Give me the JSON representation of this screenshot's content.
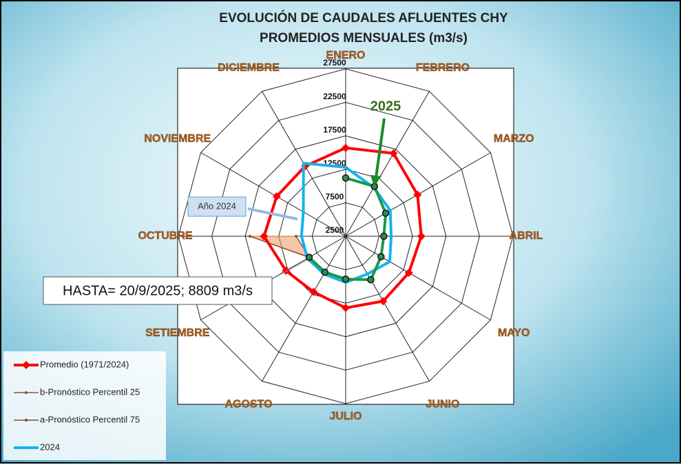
{
  "chart_data": {
    "type": "radar",
    "title": "EVOLUCIÓN DE CAUDALES AFLUENTES CHY",
    "subtitle": "PROMEDIOS MENSUALES (m3/s)",
    "categories": [
      "ENERO",
      "FEBRERO",
      "MARZO",
      "ABRIL",
      "MAYO",
      "JUNIO",
      "JULIO",
      "AGOSTO",
      "SETIEMBRE",
      "OCTUBRE",
      "NOVIEMBRE",
      "DICIEMBRE"
    ],
    "rlim": [
      2500,
      27500
    ],
    "rticks": [
      2500,
      7500,
      12500,
      17500,
      22500,
      27500
    ],
    "series": [
      {
        "name": "Promedio (1971/2024)",
        "color": "#ff0000",
        "marker": "diamond",
        "values": [
          15700,
          16800,
          14900,
          13800,
          13400,
          13700,
          13200,
          12100,
          12800,
          14700,
          14400,
          14600
        ]
      },
      {
        "name": "b-Pronóstico Percentil 25",
        "color": "#9c4a3a",
        "marker": "dot",
        "values": [
          null,
          null,
          null,
          null,
          null,
          null,
          null,
          null,
          8800,
          9900,
          null,
          null
        ]
      },
      {
        "name": "a-Pronóstico Percentil 75",
        "color": "#8b4a2a",
        "marker": "dot",
        "values": [
          null,
          null,
          null,
          null,
          null,
          null,
          null,
          null,
          8800,
          16800,
          null,
          null
        ]
      },
      {
        "name": "2024",
        "color": "#14b4ec",
        "marker": "none",
        "values": [
          12800,
          10900,
          10200,
          9300,
          10100,
          9000,
          9400,
          9000,
          9100,
          9100,
          9800,
          15100
        ]
      },
      {
        "name": "2025",
        "color": "#1a9a4a",
        "marker": "circle",
        "legend": false,
        "values": [
          11200,
          11100,
          9400,
          8200,
          8600,
          10000,
          8900,
          8700,
          8800,
          null,
          null,
          null
        ]
      }
    ],
    "annotations": [
      "Año 2024",
      "HASTA= 20/9/2025; 8809 m3/s"
    ]
  }
}
